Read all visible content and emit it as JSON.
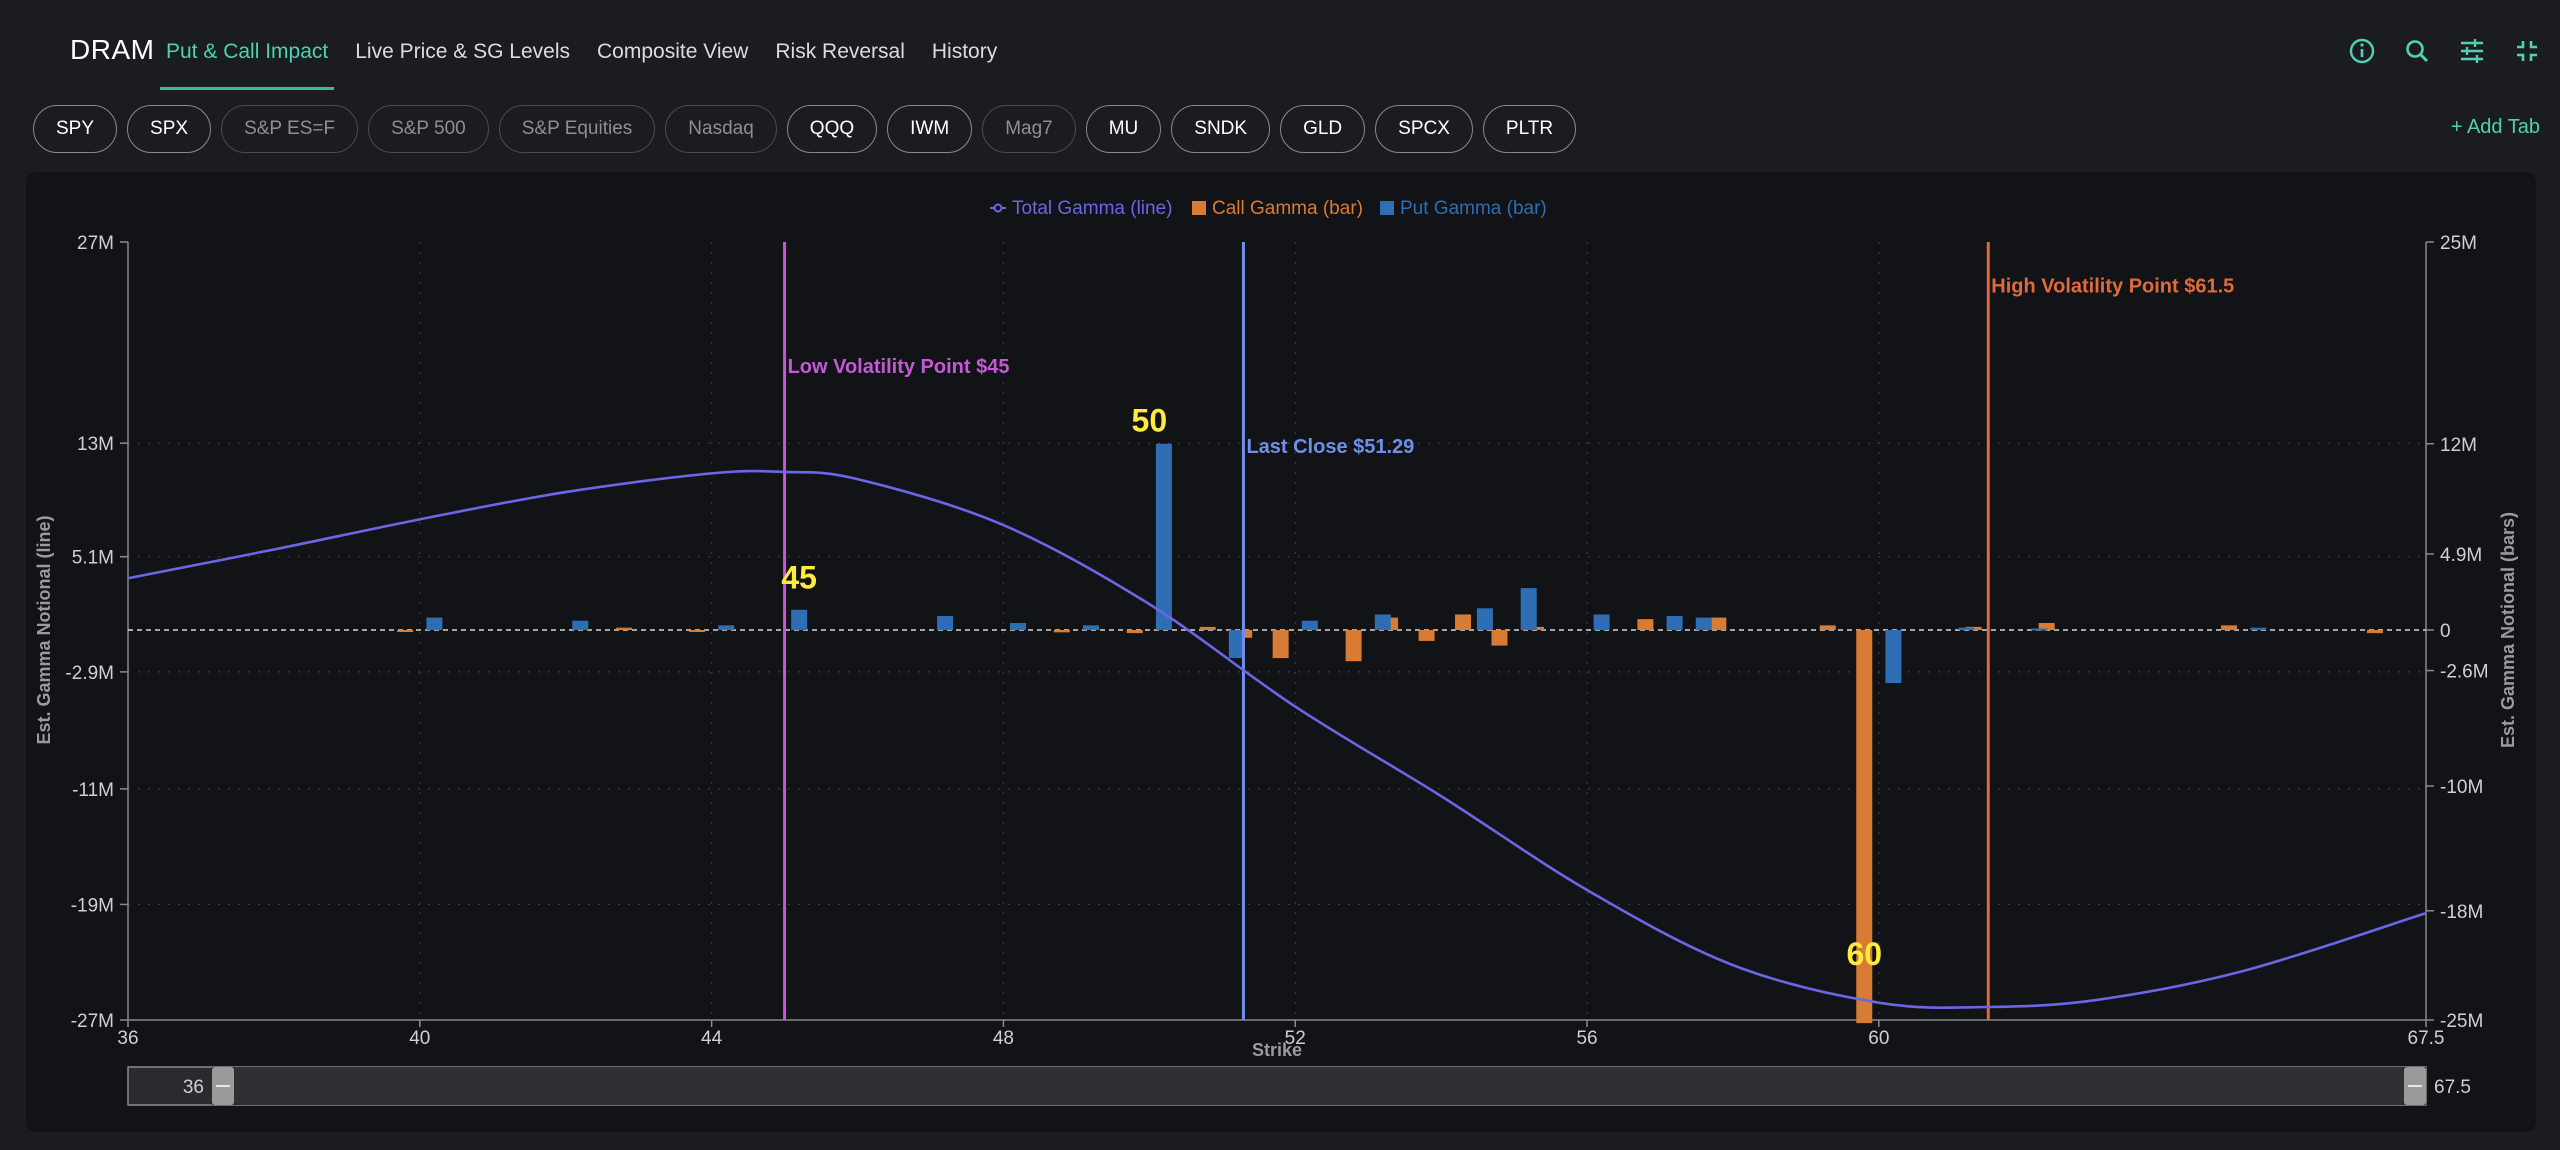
{
  "header": {
    "ticker": "DRAM",
    "tabs": [
      {
        "label": "Put & Call Impact",
        "active": true
      },
      {
        "label": "Live Price & SG Levels",
        "active": false
      },
      {
        "label": "Composite View",
        "active": false
      },
      {
        "label": "Risk Reversal",
        "active": false
      },
      {
        "label": "History",
        "active": false
      }
    ],
    "icons": [
      "info-icon",
      "search-icon",
      "sliders-icon",
      "collapse-icon"
    ]
  },
  "pills": [
    {
      "label": "SPY",
      "enabled": true
    },
    {
      "label": "SPX",
      "enabled": true
    },
    {
      "label": "S&P ES=F",
      "enabled": false
    },
    {
      "label": "S&P 500",
      "enabled": false
    },
    {
      "label": "S&P Equities",
      "enabled": false
    },
    {
      "label": "Nasdaq",
      "enabled": false
    },
    {
      "label": "QQQ",
      "enabled": true
    },
    {
      "label": "IWM",
      "enabled": true
    },
    {
      "label": "Mag7",
      "enabled": false
    },
    {
      "label": "MU",
      "enabled": true
    },
    {
      "label": "SNDK",
      "enabled": true
    },
    {
      "label": "GLD",
      "enabled": true
    },
    {
      "label": "SPCX",
      "enabled": true
    },
    {
      "label": "PLTR",
      "enabled": true
    }
  ],
  "add_tab_label": "+ Add Tab",
  "colors": {
    "accent": "#4fd1b2",
    "total_gamma": "#6a66e6",
    "call_gamma": "#d87b34",
    "put_gamma": "#2f6db4",
    "low_vol": "#c458d6",
    "last_close": "#6f8fe8",
    "high_vol": "#e06a3a",
    "strike_label": "#ffeb3b"
  },
  "chart_data": {
    "type": "bar",
    "legend": [
      "Total Gamma (line)",
      "Call Gamma (bar)",
      "Put Gamma (bar)"
    ],
    "legend_position": "top-center",
    "xlabel": "Strike",
    "ylabel_left": "Est. Gamma Notional (line)",
    "ylabel_right": "Est. Gamma Notional (bars)",
    "xlim": [
      36,
      67.5
    ],
    "x_ticks": [
      36,
      40,
      44,
      48,
      52,
      56,
      60,
      67.5
    ],
    "left_ticks": [
      {
        "v": 27,
        "label": "27M"
      },
      {
        "v": 13,
        "label": "13M"
      },
      {
        "v": 5.1,
        "label": "5.1M"
      },
      {
        "v": -2.9,
        "label": "-2.9M"
      },
      {
        "v": -11,
        "label": "-11M"
      },
      {
        "v": -19,
        "label": "-19M"
      },
      {
        "v": -27,
        "label": "-27M"
      }
    ],
    "right_ticks": [
      {
        "v": 25,
        "label": "25M"
      },
      {
        "v": 12,
        "label": "12M"
      },
      {
        "v": 4.9,
        "label": "4.9M"
      },
      {
        "v": 0,
        "label": "0"
      },
      {
        "v": -2.6,
        "label": "-2.6M"
      },
      {
        "v": -10,
        "label": "-10M"
      },
      {
        "v": -18,
        "label": "-18M"
      },
      {
        "v": -25,
        "label": "-25M"
      }
    ],
    "grid": true,
    "total_gamma": {
      "x": [
        36,
        38,
        40,
        42,
        44,
        45,
        46,
        48,
        50,
        52,
        54,
        56,
        58,
        60,
        61.5,
        63,
        65,
        67.5
      ],
      "y": [
        3.6,
        5.6,
        7.7,
        9.6,
        10.9,
        11.0,
        10.5,
        7.3,
        1.8,
        -5.3,
        -11.5,
        -18.0,
        -23.2,
        -25.8,
        -26.1,
        -25.6,
        -23.6,
        -19.6
      ]
    },
    "call_gamma": {
      "x": [
        39.8,
        42.8,
        43.8,
        48.8,
        49.8,
        50.8,
        51.3,
        51.8,
        52.8,
        53.3,
        53.8,
        54.3,
        54.8,
        55.3,
        56.8,
        57.8,
        59.3,
        59.8,
        61.3,
        62.3,
        64.8,
        66.8
      ],
      "y": [
        -0.1,
        0.15,
        -0.1,
        -0.15,
        -0.2,
        0.2,
        -0.5,
        -1.8,
        -2.0,
        0.8,
        -0.7,
        1.0,
        -1.0,
        0.2,
        0.7,
        0.8,
        0.3,
        -25.2,
        0.2,
        0.45,
        0.3,
        -0.2
      ]
    },
    "put_gamma": {
      "x": [
        40.2,
        42.2,
        44.2,
        45.2,
        47.2,
        48.2,
        49.2,
        50.2,
        51.2,
        52.2,
        53.2,
        54.6,
        55.2,
        56.2,
        57.2,
        57.6,
        60.2,
        61.2,
        62.2,
        65.2
      ],
      "y": [
        0.8,
        0.6,
        0.3,
        1.3,
        0.9,
        0.45,
        0.3,
        12.0,
        -1.8,
        0.6,
        1.0,
        1.4,
        2.7,
        1.0,
        0.9,
        0.8,
        -3.4,
        0.15,
        0.1,
        0.15
      ]
    },
    "vlines": [
      {
        "x": 45,
        "label": "Low Volatility Point $45",
        "color": "#c458d6",
        "label_y": 17.9
      },
      {
        "x": 51.29,
        "label": "Last Close $51.29",
        "color": "#6f8fe8",
        "label_y": 12.3
      },
      {
        "x": 61.5,
        "label": "High Volatility Point $61.5",
        "color": "#e06a3a",
        "label_y": 23.5
      }
    ],
    "strike_labels": [
      {
        "x": 45.2,
        "y": 2.9,
        "text": "45"
      },
      {
        "x": 50.0,
        "y": 13.8,
        "text": "50"
      },
      {
        "x": 59.8,
        "y": -23.2,
        "text": "60"
      }
    ],
    "range_slider": {
      "min_label": "36",
      "max_label": "67.5"
    }
  }
}
